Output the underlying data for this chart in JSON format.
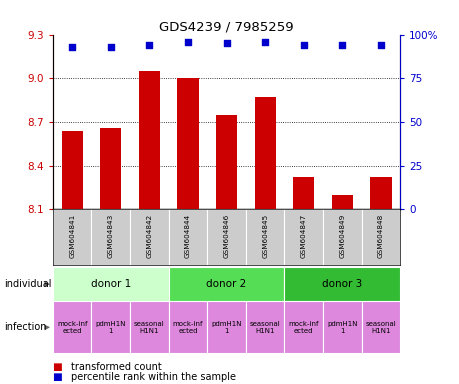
{
  "title": "GDS4239 / 7985259",
  "samples": [
    "GSM604841",
    "GSM604843",
    "GSM604842",
    "GSM604844",
    "GSM604846",
    "GSM604845",
    "GSM604847",
    "GSM604849",
    "GSM604848"
  ],
  "bar_values": [
    8.64,
    8.66,
    9.05,
    9.0,
    8.75,
    8.87,
    8.32,
    8.2,
    8.32
  ],
  "percentile_values": [
    93,
    93,
    94,
    96,
    95,
    96,
    94,
    94,
    94
  ],
  "ylim_left": [
    8.1,
    9.3
  ],
  "ylim_right": [
    0,
    100
  ],
  "yticks_left": [
    8.1,
    8.4,
    8.7,
    9.0,
    9.3
  ],
  "ytick_right_vals": [
    0,
    25,
    50,
    75,
    100
  ],
  "ytick_right_labels": [
    "0",
    "25",
    "50",
    "75",
    "100%"
  ],
  "bar_color": "#cc0000",
  "dot_color": "#0000cc",
  "individual_labels": [
    "donor 1",
    "donor 2",
    "donor 3"
  ],
  "indiv_colors": [
    "#ccffcc",
    "#55dd55",
    "#33bb33"
  ],
  "infection_color": "#dd88dd",
  "inf_labels": [
    "mock-inf\nected",
    "pdmH1N\n1",
    "seasonal\nH1N1"
  ],
  "row_label_individual": "individual",
  "row_label_infection": "infection",
  "legend_bar": "transformed count",
  "legend_dot": "percentile rank within the sample",
  "sample_bg_color": "#cccccc",
  "grid_dotted_vals": [
    8.4,
    8.7,
    9.0
  ]
}
